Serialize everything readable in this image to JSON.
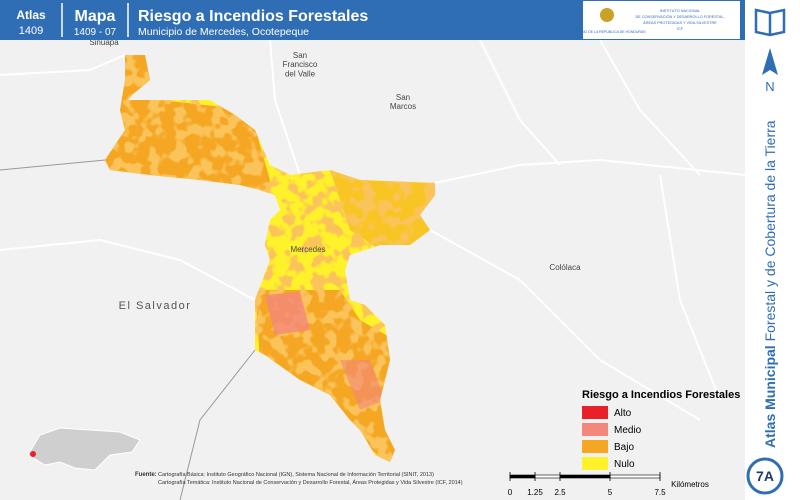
{
  "header": {
    "atlas_label": "Atlas",
    "atlas_number": "1409",
    "map_label": "Mapa",
    "map_number": "1409 - 07",
    "title": "Riesgo a Incendios Forestales",
    "subtitle": "Municipio de Mercedes, Ocotepeque",
    "logo_left": "GOBIERNO DE LA REPÚBLICA DE HONDURAS",
    "logo_right": [
      "INSTITUTO NACIONAL",
      "DE CONSERVACIÓN Y DESARROLLO FORESTAL,",
      "ÁREAS PROTEGIDAS Y VIDA SILVESTRE",
      "ICF"
    ]
  },
  "sidebar": {
    "north": "N",
    "atlas_title_bold": "Atlas Municipal",
    "atlas_title": "Forestal y de Cobertura de la Tierra",
    "sheet": "7A"
  },
  "map": {
    "places": [
      {
        "lines": [
          "Sinuapa"
        ]
      },
      {
        "lines": [
          "San",
          "Francisco",
          "del Valle"
        ]
      },
      {
        "lines": [
          "San",
          "Marcos"
        ]
      },
      {
        "lines": [
          "Mercedes"
        ]
      },
      {
        "lines": [
          "Colólaca"
        ]
      },
      {
        "lines": [
          "El Salvador"
        ]
      }
    ]
  },
  "legend": {
    "title": "Riesgo a Incendios Forestales",
    "items": [
      {
        "label": "Alto",
        "color": "#e8202a"
      },
      {
        "label": "Medio",
        "color": "#f4877b"
      },
      {
        "label": "Bajo",
        "color": "#f5a623"
      },
      {
        "label": "Nulo",
        "color": "#fff22a"
      }
    ]
  },
  "source": {
    "label": "Fuente:",
    "lines": [
      "Cartografía Básica: Instituto Geográfico Nacional (IGN), Sistema Nacional de Información Territorial (SINIT, 2013)",
      "Cartografía Temática: Instituto Nacional de Conservación y Desarrollo Forestal, Áreas Protegidas y Vida Silvestre (ICF, 2014)"
    ]
  },
  "scale_bar": {
    "unit": "Kilómetros",
    "ticks": [
      0,
      1.25,
      2.5,
      5,
      7.5
    ]
  }
}
